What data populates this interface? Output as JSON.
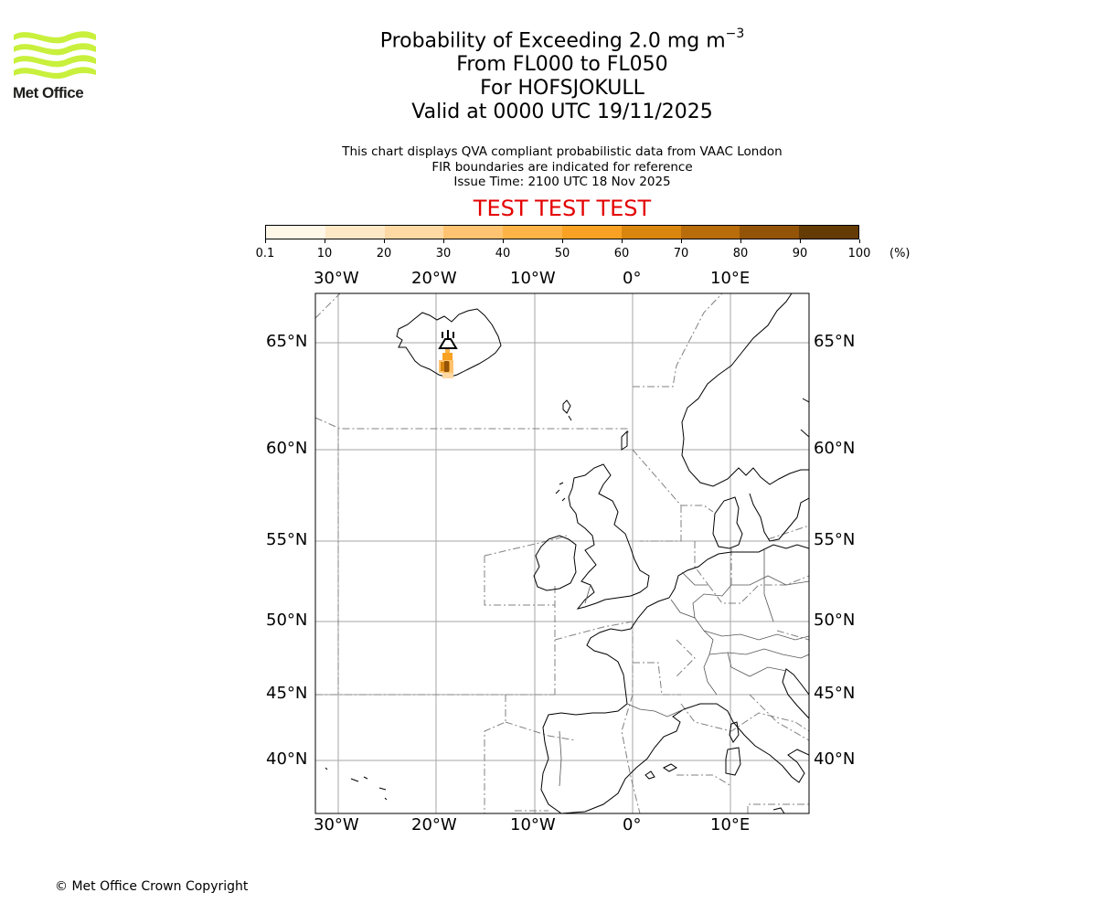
{
  "header": {
    "logo_name": "Met Office",
    "title_main": "Probability of Exceeding 2.0 mg m",
    "title_exponent": "−3",
    "level_range": "From FL000 to FL050",
    "location": "For HOFSJOKULL",
    "valid_time": "Valid at 0000 UTC 19/11/2025"
  },
  "notes": {
    "line1": "This chart displays QVA compliant probabilistic data from VAAC London",
    "line2": "FIR boundaries are indicated for reference",
    "issue_time": "Issue Time: 2100 UTC 18 Nov 2025"
  },
  "banner": {
    "text": "TEST TEST TEST",
    "color": "#e40000"
  },
  "colorbar": {
    "unit": "(%)",
    "ticks": [
      "0.1",
      "10",
      "20",
      "30",
      "40",
      "50",
      "60",
      "70",
      "80",
      "90",
      "100"
    ],
    "colors": [
      "#fff7e8",
      "#ffe8c6",
      "#ffd9a3",
      "#ffc371",
      "#ffb347",
      "#f9a123",
      "#d9860f",
      "#b86c0a",
      "#935408",
      "#653b05"
    ]
  },
  "map": {
    "lon_ticks_top": [
      "30°W",
      "20°W",
      "10°W",
      "0°",
      "10°E"
    ],
    "lon_ticks_bottom": [
      "30°W",
      "20°W",
      "10°W",
      "0°",
      "10°E"
    ],
    "lat_ticks_left": [
      "65°N",
      "60°N",
      "55°N",
      "50°N",
      "45°N",
      "40°N"
    ],
    "lat_ticks_right": [
      "65°N",
      "60°N",
      "55°N",
      "50°N",
      "45°N",
      "40°N"
    ],
    "volcano_icon": "volcano-icon"
  },
  "footer": {
    "copyright": "© Met Office Crown Copyright"
  }
}
